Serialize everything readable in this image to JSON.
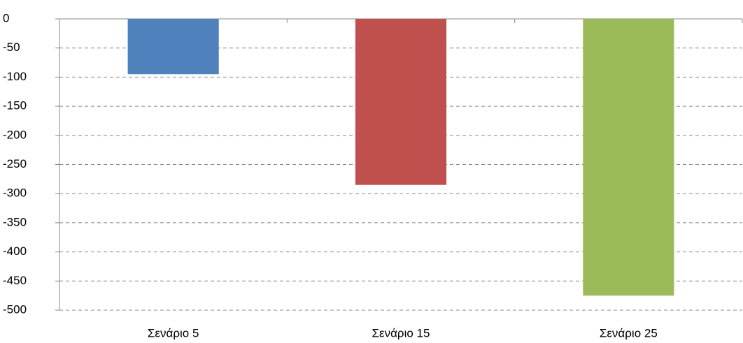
{
  "chart_data": {
    "type": "bar",
    "categories": [
      "Σενάριο 5",
      "Σενάριο 15",
      "Σενάριο 25"
    ],
    "values": [
      -95,
      -285,
      -475
    ],
    "colors": [
      "#4f81bd",
      "#c0504d",
      "#9bbb59"
    ],
    "ylim": [
      -500,
      0
    ],
    "yticks": [
      0,
      -50,
      -100,
      -150,
      -200,
      -250,
      -300,
      -350,
      -400,
      -450,
      -500
    ],
    "grid": true
  }
}
